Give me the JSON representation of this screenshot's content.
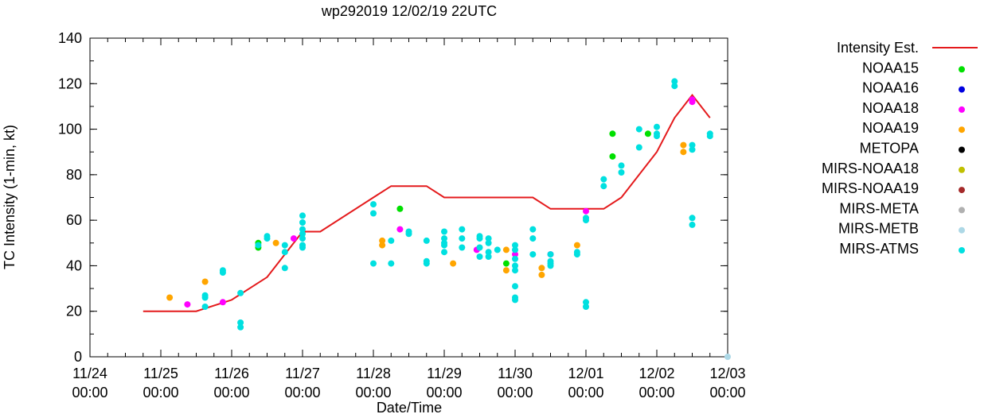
{
  "chart_data": {
    "type": "scatter",
    "title": "wp292019 12/02/19 22UTC",
    "xlabel": "Date/Time",
    "ylabel": "TC Intensity (1-min, kt)",
    "ylim": [
      0,
      140
    ],
    "yticks": [
      0,
      20,
      40,
      60,
      80,
      100,
      120,
      140
    ],
    "xlim": [
      "2019-11-24 00:00",
      "2019-12-03 00:00"
    ],
    "xticks": [
      {
        "date": "2019-11-24 00:00",
        "label1": "11/24",
        "label2": "00:00"
      },
      {
        "date": "2019-11-25 00:00",
        "label1": "11/25",
        "label2": "00:00"
      },
      {
        "date": "2019-11-26 00:00",
        "label1": "11/26",
        "label2": "00:00"
      },
      {
        "date": "2019-11-27 00:00",
        "label1": "11/27",
        "label2": "00:00"
      },
      {
        "date": "2019-11-28 00:00",
        "label1": "11/28",
        "label2": "00:00"
      },
      {
        "date": "2019-11-29 00:00",
        "label1": "11/29",
        "label2": "00:00"
      },
      {
        "date": "2019-11-30 00:00",
        "label1": "11/30",
        "label2": "00:00"
      },
      {
        "date": "2019-12-01 00:00",
        "label1": "12/01",
        "label2": "00:00"
      },
      {
        "date": "2019-12-02 00:00",
        "label1": "12/02",
        "label2": "00:00"
      },
      {
        "date": "2019-12-03 00:00",
        "label1": "12/03",
        "label2": "00:00"
      }
    ],
    "legend_position": "right",
    "grid": false,
    "series": [
      {
        "name": "Intensity Est.",
        "kind": "line",
        "color": "#e41a1c",
        "points": [
          [
            "2019-11-24 18:00",
            20
          ],
          [
            "2019-11-25 00:00",
            20
          ],
          [
            "2019-11-25 12:00",
            20
          ],
          [
            "2019-11-26 00:00",
            25
          ],
          [
            "2019-11-26 12:00",
            35
          ],
          [
            "2019-11-26 12:00",
            35
          ],
          [
            "2019-11-27 00:00",
            55
          ],
          [
            "2019-11-27 06:00",
            55
          ],
          [
            "2019-11-28 00:00",
            70
          ],
          [
            "2019-11-28 06:00",
            75
          ],
          [
            "2019-11-28 18:00",
            75
          ],
          [
            "2019-11-29 00:00",
            70
          ],
          [
            "2019-11-29 12:00",
            70
          ],
          [
            "2019-11-30 00:00",
            70
          ],
          [
            "2019-11-30 06:00",
            70
          ],
          [
            "2019-11-30 12:00",
            65
          ],
          [
            "2019-12-01 00:00",
            65
          ],
          [
            "2019-12-01 06:00",
            65
          ],
          [
            "2019-12-01 12:00",
            70
          ],
          [
            "2019-12-02 00:00",
            90
          ],
          [
            "2019-12-02 06:00",
            105
          ],
          [
            "2019-12-02 12:00",
            115
          ],
          [
            "2019-12-02 18:00",
            105
          ]
        ]
      },
      {
        "name": "NOAA15",
        "kind": "points",
        "color": "#00e000",
        "points": [
          [
            "2019-11-26 09:00",
            48
          ],
          [
            "2019-11-26 09:00",
            50
          ],
          [
            "2019-11-28 09:00",
            65
          ],
          [
            "2019-11-29 21:00",
            41
          ],
          [
            "2019-12-01 09:00",
            88
          ],
          [
            "2019-12-01 09:00",
            98
          ],
          [
            "2019-12-01 21:00",
            98
          ]
        ]
      },
      {
        "name": "NOAA16",
        "kind": "points",
        "color": "#0000e0",
        "points": []
      },
      {
        "name": "NOAA18",
        "kind": "points",
        "color": "#ff00ff",
        "points": [
          [
            "2019-11-25 09:00",
            23
          ],
          [
            "2019-11-25 21:00",
            24
          ],
          [
            "2019-11-26 21:00",
            52
          ],
          [
            "2019-11-28 09:00",
            56
          ],
          [
            "2019-11-29 11:00",
            47
          ],
          [
            "2019-11-30 00:00",
            45
          ],
          [
            "2019-11-30 12:00",
            45
          ],
          [
            "2019-12-01 00:00",
            64
          ],
          [
            "2019-12-02 12:00",
            112
          ],
          [
            "2019-12-02 12:00",
            113
          ]
        ]
      },
      {
        "name": "NOAA19",
        "kind": "points",
        "color": "#ffa500",
        "points": [
          [
            "2019-11-25 03:00",
            26
          ],
          [
            "2019-11-25 15:00",
            33
          ],
          [
            "2019-11-26 15:00",
            50
          ],
          [
            "2019-11-28 03:00",
            49
          ],
          [
            "2019-11-28 03:00",
            51
          ],
          [
            "2019-11-29 03:00",
            41
          ],
          [
            "2019-11-29 21:00",
            38
          ],
          [
            "2019-11-29 21:00",
            47
          ],
          [
            "2019-11-30 09:00",
            36
          ],
          [
            "2019-11-30 09:00",
            39
          ],
          [
            "2019-11-30 21:00",
            49
          ],
          [
            "2019-12-02 09:00",
            90
          ],
          [
            "2019-12-02 09:00",
            93
          ]
        ]
      },
      {
        "name": "METOPA",
        "kind": "points",
        "color": "#000000",
        "points": []
      },
      {
        "name": "MIRS-NOAA18",
        "kind": "points",
        "color": "#c0c000",
        "points": []
      },
      {
        "name": "MIRS-NOAA19",
        "kind": "points",
        "color": "#a52a2a",
        "points": []
      },
      {
        "name": "MIRS-META",
        "kind": "points",
        "color": "#b0b0b0",
        "points": []
      },
      {
        "name": "MIRS-METB",
        "kind": "points",
        "color": "#add8e6",
        "points": [
          [
            "2019-12-03 00:00",
            0
          ]
        ]
      },
      {
        "name": "MIRS-ATMS",
        "kind": "points",
        "color": "#00e0e0",
        "points": [
          [
            "2019-11-25 15:00",
            22
          ],
          [
            "2019-11-25 15:00",
            26
          ],
          [
            "2019-11-25 15:00",
            27
          ],
          [
            "2019-11-25 21:00",
            37
          ],
          [
            "2019-11-25 21:00",
            38
          ],
          [
            "2019-11-26 03:00",
            13
          ],
          [
            "2019-11-26 03:00",
            15
          ],
          [
            "2019-11-26 03:00",
            28
          ],
          [
            "2019-11-26 09:00",
            49
          ],
          [
            "2019-11-26 12:00",
            52
          ],
          [
            "2019-11-26 12:00",
            53
          ],
          [
            "2019-11-26 18:00",
            39
          ],
          [
            "2019-11-26 18:00",
            46
          ],
          [
            "2019-11-26 18:00",
            49
          ],
          [
            "2019-11-27 00:00",
            48
          ],
          [
            "2019-11-27 00:00",
            52
          ],
          [
            "2019-11-27 00:00",
            54
          ],
          [
            "2019-11-27 00:00",
            56
          ],
          [
            "2019-11-27 00:00",
            59
          ],
          [
            "2019-11-27 00:00",
            62
          ],
          [
            "2019-11-27 00:00",
            49
          ],
          [
            "2019-11-28 00:00",
            41
          ],
          [
            "2019-11-28 00:00",
            63
          ],
          [
            "2019-11-28 00:00",
            67
          ],
          [
            "2019-11-28 06:00",
            41
          ],
          [
            "2019-11-28 06:00",
            51
          ],
          [
            "2019-11-28 12:00",
            54
          ],
          [
            "2019-11-28 12:00",
            55
          ],
          [
            "2019-11-28 18:00",
            41
          ],
          [
            "2019-11-28 18:00",
            42
          ],
          [
            "2019-11-28 18:00",
            51
          ],
          [
            "2019-11-29 00:00",
            52
          ],
          [
            "2019-11-29 00:00",
            55
          ],
          [
            "2019-11-29 00:00",
            46
          ],
          [
            "2019-11-29 00:00",
            49
          ],
          [
            "2019-11-29 00:00",
            50
          ],
          [
            "2019-11-29 06:00",
            48
          ],
          [
            "2019-11-29 06:00",
            52
          ],
          [
            "2019-11-29 06:00",
            56
          ],
          [
            "2019-11-29 12:00",
            48
          ],
          [
            "2019-11-29 12:00",
            52
          ],
          [
            "2019-11-29 12:00",
            53
          ],
          [
            "2019-11-29 12:00",
            44
          ],
          [
            "2019-11-29 15:00",
            44
          ],
          [
            "2019-11-29 15:00",
            46
          ],
          [
            "2019-11-29 15:00",
            50
          ],
          [
            "2019-11-29 15:00",
            52
          ],
          [
            "2019-11-29 18:00",
            47
          ],
          [
            "2019-11-30 00:00",
            43
          ],
          [
            "2019-11-30 00:00",
            47
          ],
          [
            "2019-11-30 00:00",
            49
          ],
          [
            "2019-11-30 00:00",
            40
          ],
          [
            "2019-11-30 00:00",
            38
          ],
          [
            "2019-11-30 00:00",
            31
          ],
          [
            "2019-11-30 00:00",
            26
          ],
          [
            "2019-11-30 00:00",
            25
          ],
          [
            "2019-11-30 06:00",
            45
          ],
          [
            "2019-11-30 06:00",
            52
          ],
          [
            "2019-11-30 06:00",
            56
          ],
          [
            "2019-11-30 12:00",
            40
          ],
          [
            "2019-11-30 12:00",
            41
          ],
          [
            "2019-11-30 12:00",
            42
          ],
          [
            "2019-11-30 12:00",
            45
          ],
          [
            "2019-11-30 21:00",
            45
          ],
          [
            "2019-11-30 21:00",
            46
          ],
          [
            "2019-12-01 00:00",
            22
          ],
          [
            "2019-12-01 00:00",
            24
          ],
          [
            "2019-12-01 00:00",
            60
          ],
          [
            "2019-12-01 00:00",
            61
          ],
          [
            "2019-12-01 06:00",
            75
          ],
          [
            "2019-12-01 06:00",
            78
          ],
          [
            "2019-12-01 12:00",
            81
          ],
          [
            "2019-12-01 12:00",
            84
          ],
          [
            "2019-12-01 18:00",
            92
          ],
          [
            "2019-12-01 18:00",
            100
          ],
          [
            "2019-12-02 00:00",
            97
          ],
          [
            "2019-12-02 00:00",
            98
          ],
          [
            "2019-12-02 00:00",
            101
          ],
          [
            "2019-12-02 06:00",
            119
          ],
          [
            "2019-12-02 06:00",
            121
          ],
          [
            "2019-12-02 12:00",
            58
          ],
          [
            "2019-12-02 12:00",
            61
          ],
          [
            "2019-12-02 12:00",
            91
          ],
          [
            "2019-12-02 12:00",
            93
          ],
          [
            "2019-12-02 18:00",
            97
          ],
          [
            "2019-12-02 18:00",
            98
          ]
        ]
      }
    ]
  }
}
